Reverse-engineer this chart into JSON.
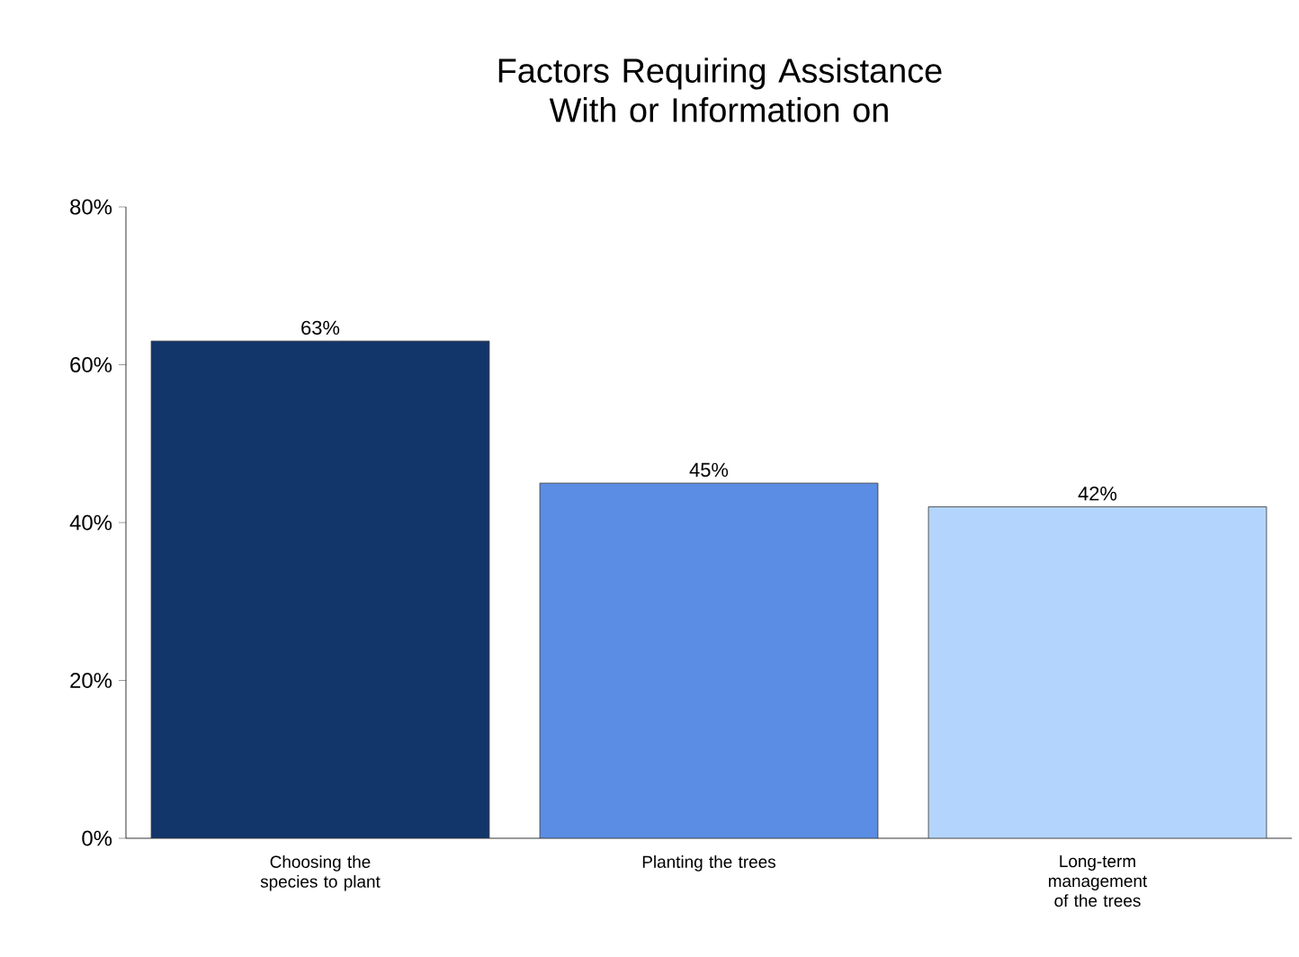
{
  "chart_data": {
    "type": "bar",
    "title": "Factors Requiring Assistance With or Information on",
    "categories": [
      "Choosing the species to plant",
      "Planting the trees",
      "Long-term management of the trees"
    ],
    "values": [
      63,
      45,
      42
    ],
    "colors": [
      "#12356a",
      "#5a8de3",
      "#b3d4fc"
    ],
    "value_labels": [
      "63%",
      "45%",
      "42%"
    ],
    "ylim": [
      0,
      80
    ],
    "yticks": [
      {
        "value": 0,
        "label": "0%"
      },
      {
        "value": 20,
        "label": "20%"
      },
      {
        "value": 40,
        "label": "40%"
      },
      {
        "value": 60,
        "label": "60%"
      },
      {
        "value": 80,
        "label": "80%"
      }
    ],
    "grid": false
  }
}
